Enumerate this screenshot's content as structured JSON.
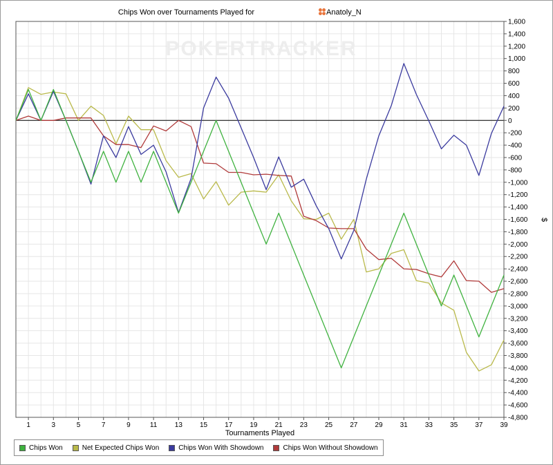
{
  "chart_data": {
    "type": "line",
    "title": "Chips Won over Tournaments Played for",
    "player_name": "Anatoly_N",
    "watermark": "POKERTRACKER",
    "xlabel": "Tournaments Played",
    "ylabel": "$",
    "xlim": [
      0,
      39
    ],
    "ylim": [
      -4800,
      1600
    ],
    "x_ticks": [
      1,
      3,
      5,
      7,
      9,
      11,
      13,
      15,
      17,
      19,
      21,
      23,
      25,
      27,
      29,
      31,
      33,
      35,
      37,
      39
    ],
    "y_ticks": [
      1600,
      1400,
      1200,
      1000,
      800,
      600,
      400,
      200,
      0,
      -200,
      -400,
      -600,
      -800,
      -1000,
      -1200,
      -1400,
      -1600,
      -1800,
      -2000,
      -2200,
      -2400,
      -2600,
      -2800,
      -3000,
      -3200,
      -3400,
      -3600,
      -3800,
      -4000,
      -4200,
      -4400,
      -4600,
      -4800
    ],
    "y_tick_labels": [
      "1,600",
      "1,400",
      "1,200",
      "1,000",
      "800",
      "600",
      "400",
      "200",
      "0",
      "-200",
      "-400",
      "-600",
      "-800",
      "-1,000",
      "-1,200",
      "-1,400",
      "-1,600",
      "-1,800",
      "-2,000",
      "-2,200",
      "-2,400",
      "-2,600",
      "-2,800",
      "-3,000",
      "-3,200",
      "-3,400",
      "-3,600",
      "-3,800",
      "-4,000",
      "-4,200",
      "-4,400",
      "-4,600",
      "-4,800"
    ],
    "grid": true,
    "legend_position": "bottom",
    "x": [
      0,
      1,
      2,
      3,
      4,
      5,
      6,
      7,
      8,
      9,
      10,
      11,
      12,
      13,
      14,
      15,
      16,
      17,
      18,
      19,
      20,
      21,
      22,
      23,
      24,
      25,
      26,
      27,
      28,
      29,
      30,
      31,
      32,
      33,
      34,
      35,
      36,
      37,
      38,
      39
    ],
    "series": [
      {
        "name": "Chips Won",
        "color": "#3fb23f",
        "values": [
          0,
          500,
          0,
          500,
          0,
          -500,
          -1000,
          -500,
          -1000,
          -500,
          -1000,
          -500,
          -1000,
          -1500,
          -1000,
          -500,
          0,
          -500,
          -1000,
          -1500,
          -2000,
          -1500,
          -2000,
          -2500,
          -3000,
          -3500,
          -4000,
          -3500,
          -3000,
          -2500,
          -2000,
          -1500,
          -2000,
          -2500,
          -3000,
          -2500,
          -3000,
          -3500,
          -3000,
          -2500
        ]
      },
      {
        "name": "Net Expected Chips Won",
        "color": "#b9b94a",
        "values": [
          0,
          530,
          420,
          460,
          430,
          0,
          230,
          80,
          -380,
          70,
          -150,
          -150,
          -650,
          -920,
          -860,
          -1270,
          -990,
          -1370,
          -1160,
          -1140,
          -1160,
          -880,
          -1300,
          -1590,
          -1600,
          -1500,
          -1920,
          -1600,
          -2450,
          -2400,
          -2150,
          -2090,
          -2590,
          -2630,
          -2950,
          -3070,
          -3750,
          -4050,
          -3950,
          -3550
        ]
      },
      {
        "name": "Chips Won With Showdown",
        "color": "#3a3a9e",
        "values": [
          0,
          430,
          0,
          470,
          0,
          -500,
          -1030,
          -250,
          -600,
          -100,
          -550,
          -400,
          -830,
          -1490,
          -940,
          200,
          700,
          360,
          -120,
          -600,
          -1120,
          -590,
          -1080,
          -950,
          -1380,
          -1750,
          -2240,
          -1780,
          -950,
          -250,
          240,
          920,
          420,
          -10,
          -460,
          -240,
          -400,
          -890,
          -210,
          230
        ]
      },
      {
        "name": "Chips Won Without Showdown",
        "color": "#b03a3a",
        "values": [
          0,
          70,
          0,
          0,
          40,
          40,
          40,
          -250,
          -390,
          -390,
          -440,
          -90,
          -170,
          0,
          -100,
          -690,
          -700,
          -840,
          -840,
          -880,
          -870,
          -890,
          -900,
          -1550,
          -1620,
          -1740,
          -1750,
          -1750,
          -2080,
          -2250,
          -2230,
          -2400,
          -2410,
          -2480,
          -2530,
          -2270,
          -2590,
          -2600,
          -2780,
          -2720
        ]
      }
    ]
  }
}
